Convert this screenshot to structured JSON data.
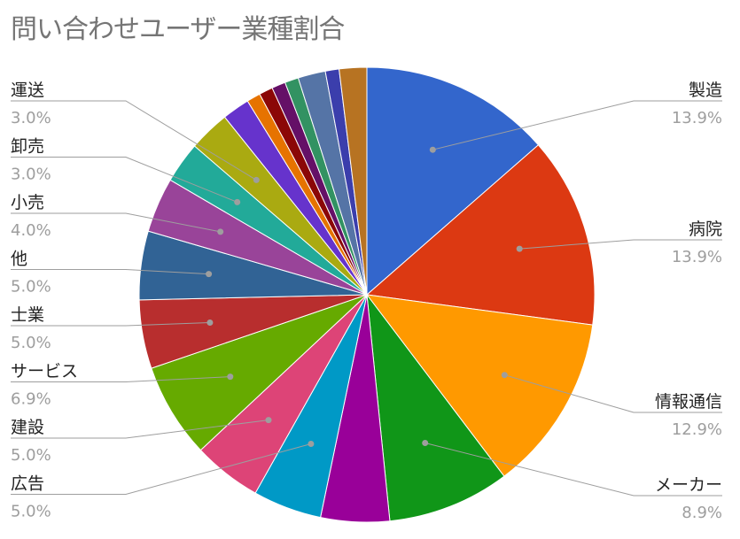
{
  "chart_data": {
    "type": "pie",
    "title": "問い合わせユーザー業種割合",
    "slices": [
      {
        "label": "製造",
        "value": 13.9,
        "pct": "13.9%",
        "color": "#3366cc"
      },
      {
        "label": "病院",
        "value": 13.9,
        "pct": "13.9%",
        "color": "#dc3912"
      },
      {
        "label": "情報通信",
        "value": 12.9,
        "pct": "12.9%",
        "color": "#ff9900"
      },
      {
        "label": "メーカー",
        "value": 8.9,
        "pct": "8.9%",
        "color": "#109618"
      },
      {
        "label": "",
        "value": 5.0,
        "pct": "",
        "color": "#990099"
      },
      {
        "label": "広告",
        "value": 5.0,
        "pct": "5.0%",
        "color": "#0099c6"
      },
      {
        "label": "建設",
        "value": 5.0,
        "pct": "5.0%",
        "color": "#dd4477"
      },
      {
        "label": "サービス",
        "value": 6.9,
        "pct": "6.9%",
        "color": "#66aa00"
      },
      {
        "label": "士業",
        "value": 5.0,
        "pct": "5.0%",
        "color": "#b82e2e"
      },
      {
        "label": "他",
        "value": 5.0,
        "pct": "5.0%",
        "color": "#316395"
      },
      {
        "label": "小売",
        "value": 4.0,
        "pct": "4.0%",
        "color": "#994499"
      },
      {
        "label": "卸売",
        "value": 3.0,
        "pct": "3.0%",
        "color": "#22aa99"
      },
      {
        "label": "運送",
        "value": 3.0,
        "pct": "3.0%",
        "color": "#aaaa11"
      },
      {
        "label": "",
        "value": 2.0,
        "pct": "",
        "color": "#6633cc"
      },
      {
        "label": "",
        "value": 1.0,
        "pct": "",
        "color": "#e67300"
      },
      {
        "label": "",
        "value": 1.0,
        "pct": "",
        "color": "#8b0707"
      },
      {
        "label": "",
        "value": 1.0,
        "pct": "",
        "color": "#651067"
      },
      {
        "label": "",
        "value": 1.0,
        "pct": "",
        "color": "#329262"
      },
      {
        "label": "",
        "value": 2.0,
        "pct": "",
        "color": "#5574a6"
      },
      {
        "label": "",
        "value": 1.0,
        "pct": "",
        "color": "#3b3eac"
      },
      {
        "label": "",
        "value": 2.0,
        "pct": "",
        "color": "#b77322"
      }
    ],
    "legend": "none"
  }
}
